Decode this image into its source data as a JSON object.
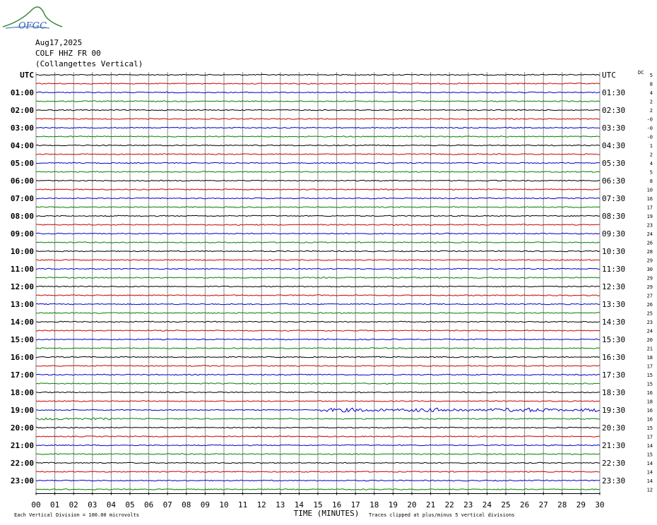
{
  "header": {
    "logo": "OFGC",
    "date": "Aug17,2025",
    "station": "COLF HHZ FR 00",
    "location": "(Collangettes Vertical)"
  },
  "left_labels": [
    "UTC",
    "01:00",
    "02:00",
    "03:00",
    "04:00",
    "05:00",
    "06:00",
    "07:00",
    "08:00",
    "09:00",
    "10:00",
    "11:00",
    "12:00",
    "13:00",
    "14:00",
    "15:00",
    "16:00",
    "17:00",
    "18:00",
    "19:00",
    "20:00",
    "21:00",
    "22:00",
    "23:00"
  ],
  "right_labels": [
    "UTC",
    "01:30",
    "02:30",
    "03:30",
    "04:30",
    "05:30",
    "06:30",
    "07:30",
    "08:30",
    "09:30",
    "10:30",
    "11:30",
    "12:30",
    "13:30",
    "14:30",
    "15:30",
    "16:30",
    "17:30",
    "18:30",
    "19:30",
    "20:30",
    "21:30",
    "22:30",
    "23:30"
  ],
  "dc_title": "DC",
  "dc_offsets": [
    "5",
    "8",
    "4",
    "2",
    "2",
    "-0",
    "-0",
    "-0",
    "1",
    "2",
    "4",
    "5",
    "8",
    "10",
    "16",
    "17",
    "19",
    "23",
    "24",
    "26",
    "28",
    "29",
    "30",
    "29",
    "29",
    "27",
    "26",
    "25",
    "23",
    "24",
    "20",
    "21",
    "18",
    "17",
    "15",
    "15",
    "16",
    "18",
    "16",
    "16",
    "15",
    "17",
    "14",
    "15",
    "14",
    "14",
    "14",
    "12"
  ],
  "x_labels": [
    "00",
    "01",
    "02",
    "03",
    "04",
    "05",
    "06",
    "07",
    "08",
    "09",
    "10",
    "11",
    "12",
    "13",
    "14",
    "15",
    "16",
    "17",
    "18",
    "19",
    "20",
    "21",
    "22",
    "23",
    "24",
    "25",
    "26",
    "27",
    "28",
    "29",
    "30"
  ],
  "footer": {
    "scale": "Each Vertical Division =  100.00 microvolts",
    "x_title": "TIME (MINUTES)",
    "clip_note": "Traces clipped at plus/minus 5 vertical divisions"
  }
}
